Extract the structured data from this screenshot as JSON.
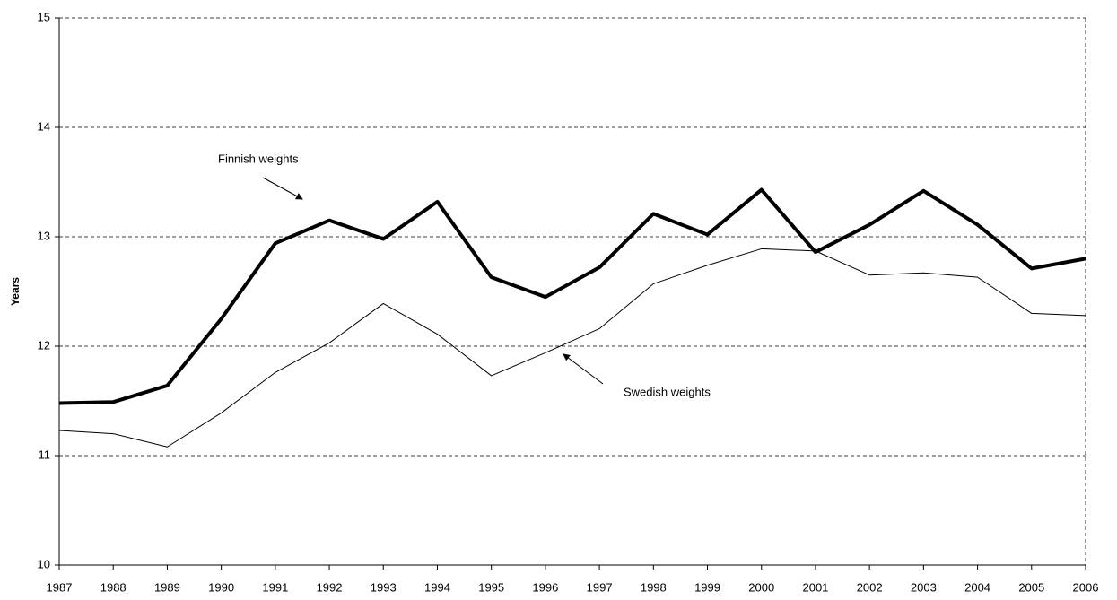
{
  "chart_data": {
    "type": "line",
    "y_label": "Years",
    "x": [
      "1987",
      "1988",
      "1989",
      "1990",
      "1991",
      "1992",
      "1993",
      "1994",
      "1995",
      "1996",
      "1997",
      "1998",
      "1999",
      "2000",
      "2001",
      "2002",
      "2003",
      "2004",
      "2005",
      "2006"
    ],
    "series": [
      {
        "name": "Finnish weights",
        "color": "#000000",
        "width": 4,
        "values": [
          11.48,
          11.49,
          11.64,
          12.25,
          12.94,
          13.15,
          12.98,
          13.32,
          12.63,
          12.45,
          12.72,
          13.21,
          13.02,
          13.43,
          12.86,
          13.11,
          13.42,
          13.11,
          12.71,
          12.8
        ]
      },
      {
        "name": "Swedish weights",
        "color": "#000000",
        "width": 1,
        "values": [
          11.23,
          11.2,
          11.08,
          11.39,
          11.76,
          12.03,
          12.39,
          12.11,
          11.73,
          11.94,
          12.16,
          12.57,
          12.74,
          12.89,
          12.87,
          12.65,
          12.67,
          12.63,
          12.3,
          12.28
        ]
      }
    ],
    "ylim": [
      10,
      15
    ],
    "yticks": [
      10,
      11,
      12,
      13,
      14,
      15
    ],
    "grid": true
  }
}
